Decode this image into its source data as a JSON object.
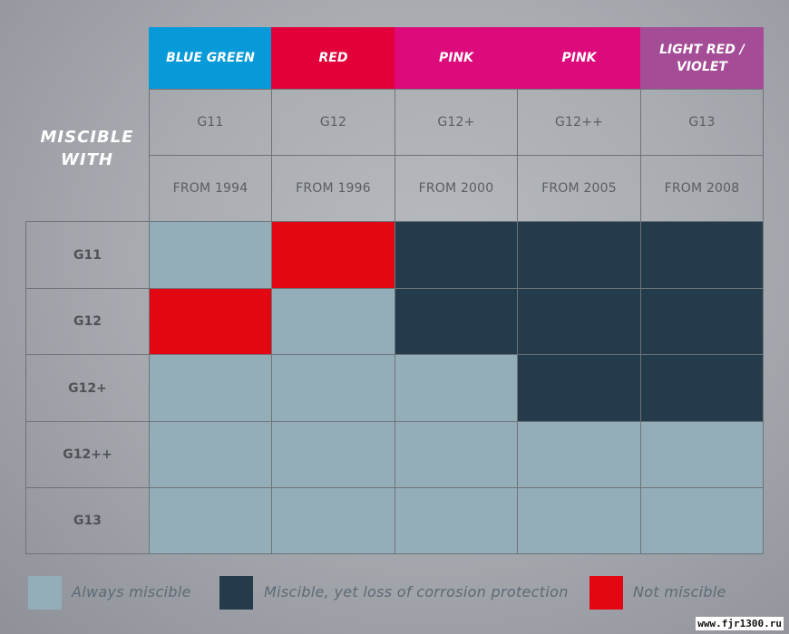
{
  "heading": "MISCIBLE\nWITH",
  "columns": [
    {
      "color_name": "BLUE GREEN",
      "color": "#079ad8",
      "type": "G11",
      "since": "FROM 1994"
    },
    {
      "color_name": "RED",
      "color": "#e3003a",
      "type": "G12",
      "since": "FROM 1996"
    },
    {
      "color_name": "PINK",
      "color": "#dd0a7c",
      "type": "G12+",
      "since": "FROM 2000"
    },
    {
      "color_name": "PINK",
      "color": "#dd0a7c",
      "type": "G12++",
      "since": "FROM 2005"
    },
    {
      "color_name": "LIGHT RED / VIOLET",
      "color": "#a54c96",
      "type": "G13",
      "since": "FROM 2008"
    }
  ],
  "rows": [
    "G11",
    "G12",
    "G12+",
    "G12++",
    "G13"
  ],
  "matrix": [
    [
      "always",
      "not",
      "loss",
      "loss",
      "loss"
    ],
    [
      "not",
      "always",
      "loss",
      "loss",
      "loss"
    ],
    [
      "always",
      "always",
      "always",
      "loss",
      "loss"
    ],
    [
      "always",
      "always",
      "always",
      "always",
      "always"
    ],
    [
      "always",
      "always",
      "always",
      "always",
      "always"
    ]
  ],
  "legend": [
    {
      "key": "always",
      "label": "Always miscible",
      "color": "#93adb9"
    },
    {
      "key": "loss",
      "label": "Miscible, yet loss of corrosion protection",
      "color": "#233b4b"
    },
    {
      "key": "not",
      "label": "Not miscible",
      "color": "#e30613"
    }
  ],
  "watermark": "www.fjr1300.ru"
}
